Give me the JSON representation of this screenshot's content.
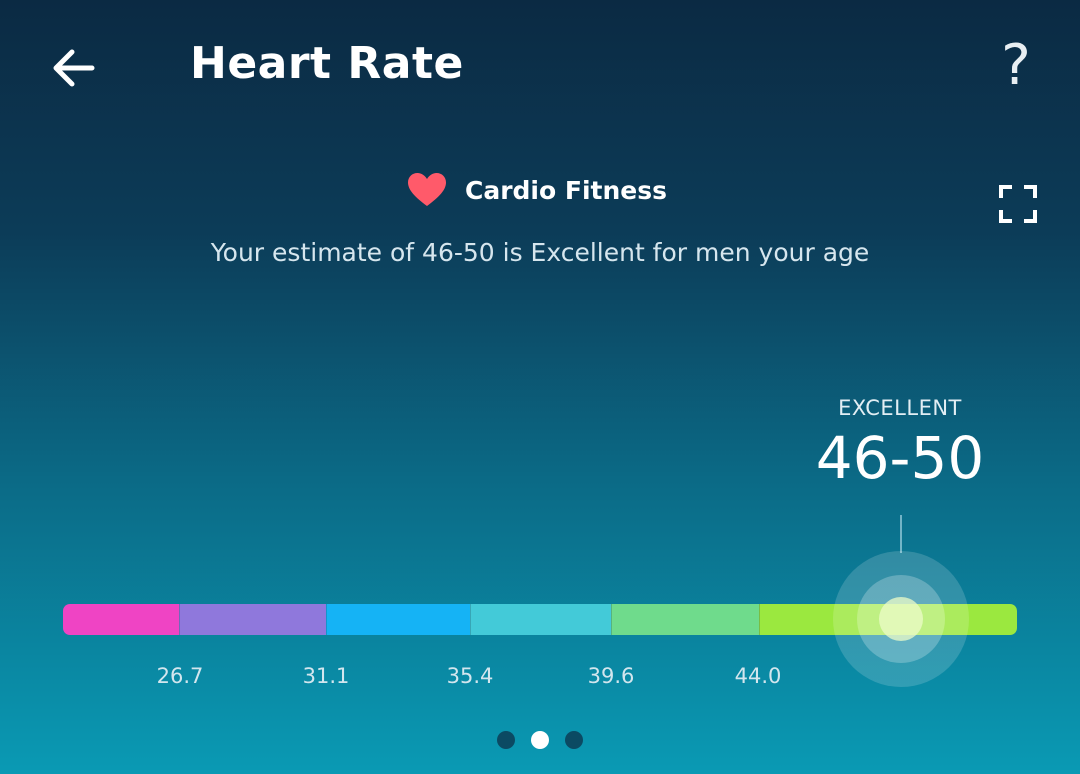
{
  "header": {
    "title": "Heart Rate",
    "back_icon": "arrow-left-icon",
    "help_label": "?"
  },
  "section": {
    "heart_icon": "heart-icon",
    "heart_color": "#ff5a6a",
    "title": "Cardio Fitness",
    "subtitle": "Your estimate of 46-50 is Excellent for men your age",
    "expand_icon": "fullscreen-icon"
  },
  "readout": {
    "level": "EXCELLENT",
    "value": "46-50"
  },
  "scale": {
    "segments": [
      {
        "name": "segment-1",
        "color": "#ef44c4"
      },
      {
        "name": "segment-2",
        "color": "#8f78dc"
      },
      {
        "name": "segment-3",
        "color": "#15b3f5"
      },
      {
        "name": "segment-4",
        "color": "#43cad8"
      },
      {
        "name": "segment-5",
        "color": "#6fdb8c"
      },
      {
        "name": "segment-6",
        "color": "#9be83f"
      }
    ],
    "ticks": [
      "26.7",
      "31.1",
      "35.4",
      "39.6",
      "44.0"
    ]
  },
  "pager": {
    "count": 3,
    "active_index": 1
  }
}
